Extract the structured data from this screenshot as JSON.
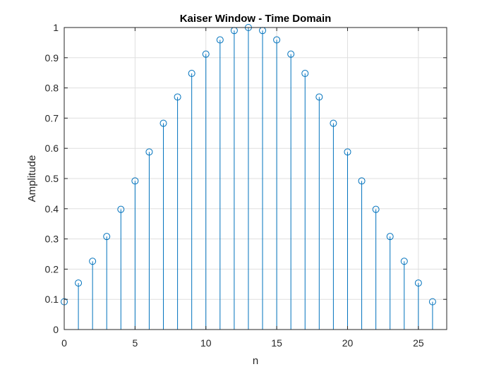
{
  "chart_data": {
    "type": "stem",
    "title": "Kaiser Window - Time Domain",
    "xlabel": "n",
    "ylabel": "Amplitude",
    "xlim": [
      0,
      27
    ],
    "ylim": [
      0,
      1
    ],
    "xticks": [
      0,
      5,
      10,
      15,
      20,
      25
    ],
    "yticks": [
      0,
      0.1,
      0.2,
      0.3,
      0.4,
      0.5,
      0.6,
      0.7,
      0.8,
      0.9,
      1
    ],
    "ytick_labels": [
      "0",
      "0.1",
      "0.2",
      "0.3",
      "0.4",
      "0.5",
      "0.6",
      "0.7",
      "0.8",
      "0.9",
      "1"
    ],
    "grid": true,
    "color": "#0072BD",
    "x": [
      0,
      1,
      2,
      3,
      4,
      5,
      6,
      7,
      8,
      9,
      10,
      11,
      12,
      13,
      14,
      15,
      16,
      17,
      18,
      19,
      20,
      21,
      22,
      23,
      24,
      25,
      26
    ],
    "y": [
      0.092,
      0.154,
      0.226,
      0.308,
      0.398,
      0.492,
      0.588,
      0.683,
      0.77,
      0.848,
      0.912,
      0.959,
      0.99,
      1.0,
      0.99,
      0.959,
      0.912,
      0.848,
      0.77,
      0.683,
      0.588,
      0.492,
      0.398,
      0.308,
      0.226,
      0.154,
      0.092
    ]
  }
}
